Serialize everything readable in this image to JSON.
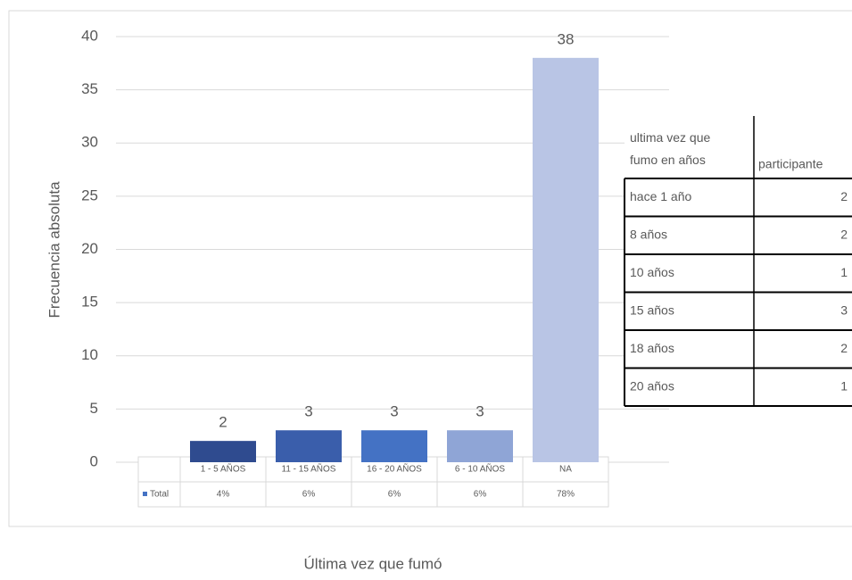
{
  "chart_data": {
    "type": "bar",
    "y_label": "Frecuencia absoluta",
    "x_label": "Última vez que fumó",
    "categories": [
      "1 - 5 AÑOS",
      "11 - 15 AÑOS",
      "16 - 20 AÑOS",
      "6 - 10 AÑOS",
      "NA"
    ],
    "values": [
      2,
      3,
      3,
      3,
      38
    ],
    "colors": [
      "#2f4b8f",
      "#3a5eab",
      "#4472c4",
      "#8fa5d6",
      "#b9c5e5"
    ],
    "ylim": [
      0,
      40
    ],
    "yticks": [
      0,
      5,
      10,
      15,
      20,
      25,
      30,
      35,
      40
    ],
    "grid": true,
    "data_table": {
      "row_label": "Total",
      "cells": [
        "4%",
        "6%",
        "6%",
        "6%",
        "78%"
      ]
    }
  },
  "table": {
    "headers": [
      "ultima vez que fumo en años",
      "participante"
    ],
    "rows": [
      [
        "hace 1 año",
        "2"
      ],
      [
        "8 años",
        "2"
      ],
      [
        "10 años",
        "1"
      ],
      [
        "15 años",
        "3"
      ],
      [
        "18 años",
        "2"
      ],
      [
        "20 años",
        "1"
      ]
    ]
  }
}
